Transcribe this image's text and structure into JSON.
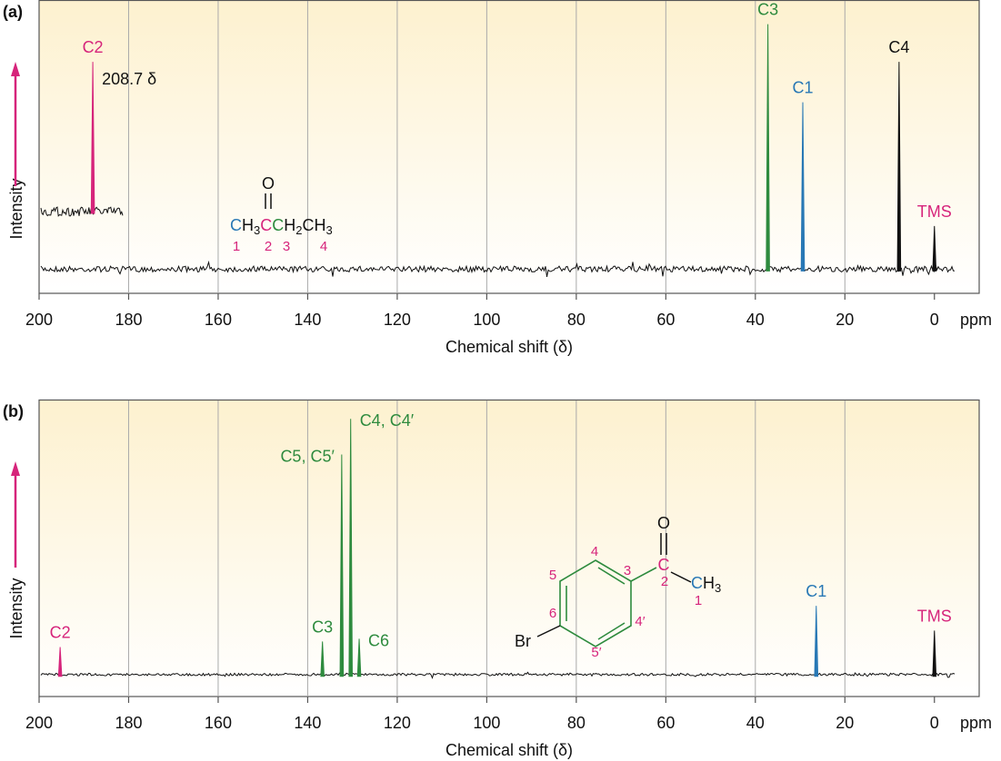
{
  "chart_data": [
    {
      "type": "spectrum",
      "panel_label": "(a)",
      "x_label": "Chemical shift (δ)",
      "y_label": "Intensity",
      "x_unit": "ppm",
      "xlim": [
        200,
        -10
      ],
      "xticks": [
        200,
        180,
        160,
        140,
        120,
        100,
        80,
        60,
        40,
        20,
        0
      ],
      "ylim": [
        -9,
        100
      ],
      "grid": true,
      "peaks": [
        {
          "label": "C2",
          "color": "#d6247b",
          "x": 188,
          "value": 77,
          "inset": true,
          "annotation": "208.7 δ"
        },
        {
          "label": "C3",
          "color": "#2e8b3e",
          "x": 37.2,
          "value": 91
        },
        {
          "label": "C1",
          "color": "#2878b5",
          "x": 29.4,
          "value": 62
        },
        {
          "label": "C4",
          "color": "#111111",
          "x": 7.9,
          "value": 77
        },
        {
          "label": "TMS",
          "color": "#111111",
          "label_color": "#d6247b",
          "x": 0,
          "value": 16
        }
      ],
      "molecule": {
        "oxygen": "O",
        "formula": [
          "C",
          "H",
          "3",
          "C",
          "C",
          "H",
          "2",
          "CH",
          "3"
        ],
        "numbers": [
          "1",
          "2",
          "3",
          "4"
        ]
      }
    },
    {
      "type": "spectrum",
      "panel_label": "(b)",
      "x_label": "Chemical shift (δ)",
      "y_label": "Intensity",
      "x_unit": "ppm",
      "xlim": [
        200,
        -10
      ],
      "xticks": [
        200,
        180,
        160,
        140,
        120,
        100,
        80,
        60,
        40,
        20,
        0
      ],
      "ylim": [
        -8,
        100
      ],
      "grid": true,
      "peaks": [
        {
          "label": "C2",
          "color": "#d6247b",
          "x": 195.3,
          "value": 10
        },
        {
          "label": "C3",
          "color": "#2e8b3e",
          "x": 136.7,
          "value": 12
        },
        {
          "label": "C5, C5′",
          "color": "#2e8b3e",
          "x": 132.4,
          "value": 80,
          "label_side": "left"
        },
        {
          "label": "C4, C4′",
          "color": "#2e8b3e",
          "x": 130.4,
          "value": 93,
          "label_side": "right"
        },
        {
          "label": "C6",
          "color": "#2e8b3e",
          "x": 128.5,
          "value": 13,
          "label_side": "right"
        },
        {
          "label": "C1",
          "color": "#2878b5",
          "x": 26.4,
          "value": 25
        },
        {
          "label": "TMS",
          "color": "#111111",
          "label_color": "#d6247b",
          "x": 0,
          "value": 16
        }
      ],
      "molecule": {
        "oxygen": "O",
        "carbon": "C",
        "methyl": [
          "C",
          "H",
          "3"
        ],
        "bromine": "Br",
        "numbers": [
          "4",
          "5",
          "3",
          "6",
          "4′",
          "5′",
          "2",
          "1"
        ]
      }
    }
  ]
}
